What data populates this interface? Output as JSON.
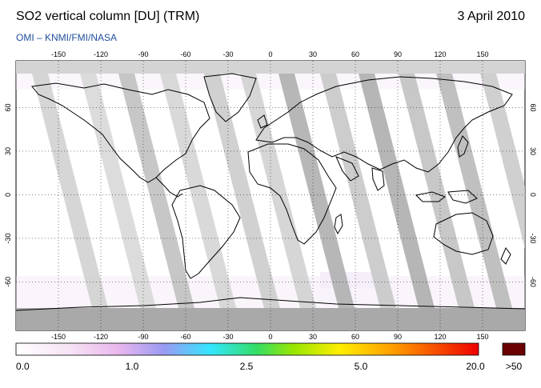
{
  "header": {
    "title": "SO2 vertical column [DU] (TRM)",
    "date": "3 April 2010",
    "subtitle": "OMI  –  KNMI/FMI/NASA"
  },
  "map": {
    "projection": "equirectangular",
    "lon_ticks_top": [
      "-150",
      "-120",
      "-90",
      "-60",
      "-30",
      "0",
      "30",
      "60",
      "90",
      "120",
      "150"
    ],
    "lon_ticks_bottom": [
      "-150",
      "-120",
      "-90",
      "-60",
      "-30",
      "0",
      "30",
      "60",
      "90",
      "120",
      "150"
    ],
    "lat_ticks": [
      "60",
      "30",
      "0",
      "-30",
      "-60"
    ],
    "colors": {
      "ocean_land_bg": "#ffffff",
      "coastline": "#000000",
      "no_data_gap_light": "#d6d6d6",
      "no_data_gap_dark": "#9a9a9a",
      "polar_night": "#b4b4b4"
    }
  },
  "colorbar": {
    "labels": [
      "0.0",
      "1.0",
      "2.5",
      "5.0",
      "20.0",
      ">50"
    ],
    "colors": [
      "#ffffff",
      "#f2c8f0",
      "#9a9af2",
      "#33e6ff",
      "#33dd33",
      "#ffee00",
      "#ff8800",
      "#ee0000",
      "#6a0000"
    ]
  }
}
